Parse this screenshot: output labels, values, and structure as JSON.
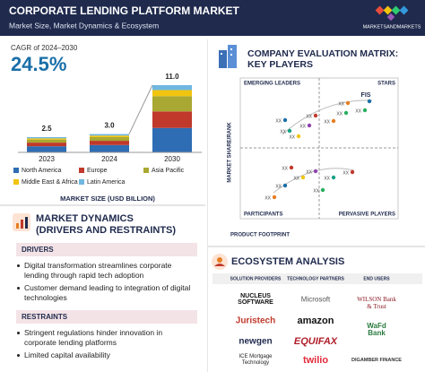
{
  "header": {
    "title": "CORPORATE LENDING PLATFORM MARKET",
    "subtitle": "Market Size, Market Dynamics & Ecosystem",
    "brand": "MARKETSANDMARKETS"
  },
  "market_size": {
    "cagr_label": "CAGR of 2024–2030",
    "cagr": "24.5%"
  },
  "chart_data": {
    "type": "bar",
    "stacked": true,
    "x_label": "MARKET SIZE (USD BILLION)",
    "categories": [
      "2023",
      "2024",
      "2030"
    ],
    "series": [
      {
        "name": "North America",
        "color": "#2e6db4",
        "values": [
          1.0,
          1.2,
          4.0
        ]
      },
      {
        "name": "Europe",
        "color": "#c0392b",
        "values": [
          0.6,
          0.7,
          2.7
        ]
      },
      {
        "name": "Asia Pacific",
        "color": "#a9a832",
        "values": [
          0.5,
          0.6,
          2.5
        ]
      },
      {
        "name": "Middle East & Africa",
        "color": "#f1c40f",
        "values": [
          0.2,
          0.25,
          1.0
        ]
      },
      {
        "name": "Latin America",
        "color": "#6fb7e0",
        "values": [
          0.2,
          0.25,
          0.8
        ]
      }
    ],
    "totals": {
      "values": [
        2.5,
        3,
        11
      ],
      "value_labels": [
        "2.5",
        "3.0",
        "11.0"
      ]
    }
  },
  "dynamics": {
    "title_lines": [
      "MARKET DYNAMICS",
      "(DRIVERS AND RESTRAINTS)"
    ],
    "drivers": {
      "title": "DRIVERS",
      "items": [
        "Digital transformation streamlines corporate lending through rapid tech adoption",
        "Customer demand leading to integration of digital technologies"
      ]
    },
    "restraints": {
      "title": "RESTRAINTS",
      "items": [
        "Stringent regulations hinder innovation in corporate lending platforms",
        "Limited capital availability"
      ]
    }
  },
  "matrix": {
    "title_lines": [
      "COMPANY EVALUATION MATRIX:",
      "KEY PLAYERS"
    ],
    "quadrants": [
      "EMERGING LEADERS",
      "STARS",
      "PARTICIPANTS",
      "PERVASIVE PLAYERS"
    ],
    "y_label": "MARKET SHARE/RANK",
    "x_label": "PRODUCT FOOTPRINT",
    "players": [
      "FIS",
      "XX",
      "XX",
      "XX",
      "XX",
      "XX",
      "XX",
      "XX",
      "XX",
      "XX",
      "XX",
      "XX",
      "XX",
      "XX",
      "XX",
      "XX",
      "XX",
      "XX"
    ]
  },
  "ecosystem": {
    "title": "ECOSYSTEM ANALYSIS",
    "columns": [
      {
        "title": "SOLUTION PROVIDERS",
        "items": [
          "NUCLEUS SOFTWARE",
          "Juristech",
          "newgen",
          "ICE Mortgage Technology"
        ]
      },
      {
        "title": "TECHNOLOGY PARTNERS",
        "items": [
          "Microsoft",
          "amazon",
          "EQUIFAX",
          "twilio"
        ]
      },
      {
        "title": "END USERS",
        "items": [
          "WILSON Bank & Trust",
          "WaFd Bank",
          "DIGAMBER FINANCE"
        ]
      }
    ]
  }
}
